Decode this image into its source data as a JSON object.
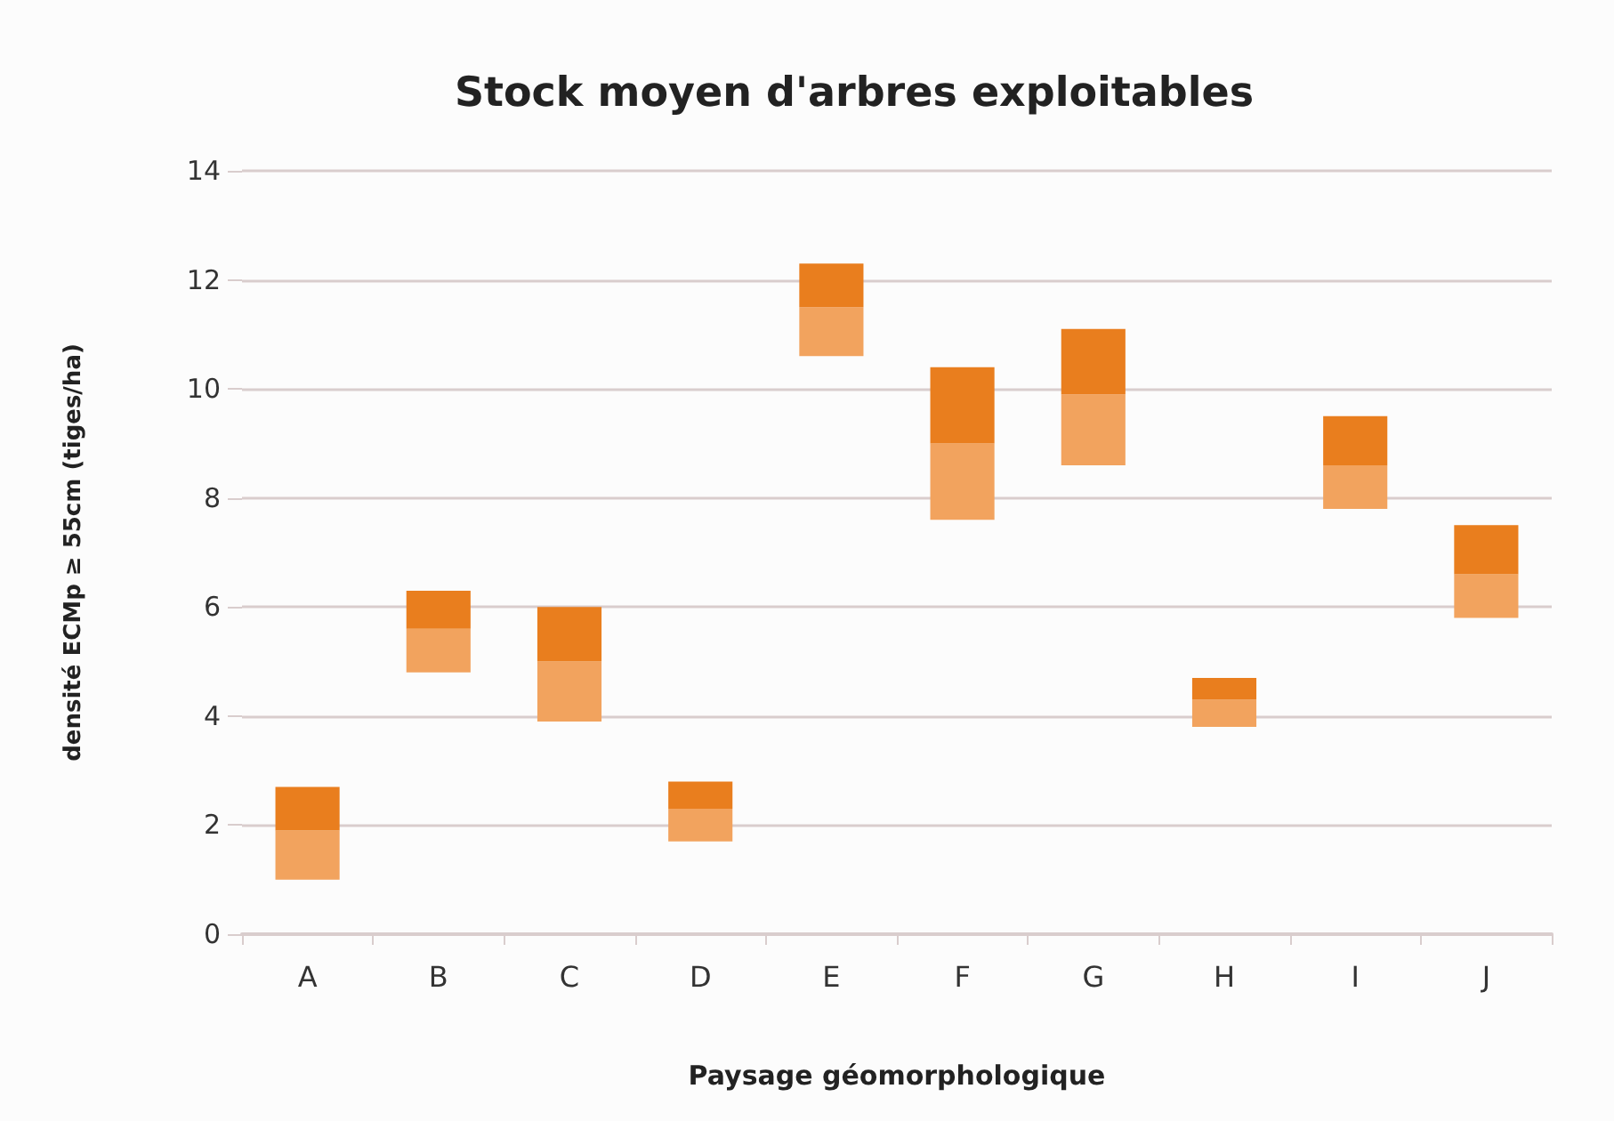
{
  "chart_data": {
    "type": "bar",
    "title": "Stock moyen d'arbres exploitables",
    "xlabel": "Paysage géomorphologique",
    "ylabel": "densité ECMp ≥ 55cm (tiges/ha)",
    "categories": [
      "A",
      "B",
      "C",
      "D",
      "E",
      "F",
      "G",
      "H",
      "I",
      "J"
    ],
    "series": [
      {
        "color": "#f2a35e",
        "base": [
          1.0,
          4.8,
          3.9,
          1.7,
          10.6,
          7.6,
          8.6,
          3.8,
          7.8,
          5.8
        ],
        "values": [
          0.9,
          0.8,
          1.1,
          0.6,
          0.9,
          1.4,
          1.3,
          0.5,
          0.8,
          0.8
        ]
      },
      {
        "color": "#e97e1e",
        "base": [
          1.9,
          5.6,
          5.0,
          2.3,
          11.5,
          9.0,
          9.9,
          4.3,
          8.6,
          6.6
        ],
        "values": [
          0.8,
          0.7,
          1.0,
          0.5,
          0.8,
          1.4,
          1.2,
          0.4,
          0.9,
          0.9
        ]
      }
    ],
    "ylim": [
      0,
      14
    ],
    "yticks": [
      0,
      2,
      4,
      6,
      8,
      10,
      12,
      14
    ],
    "grid": "y"
  }
}
